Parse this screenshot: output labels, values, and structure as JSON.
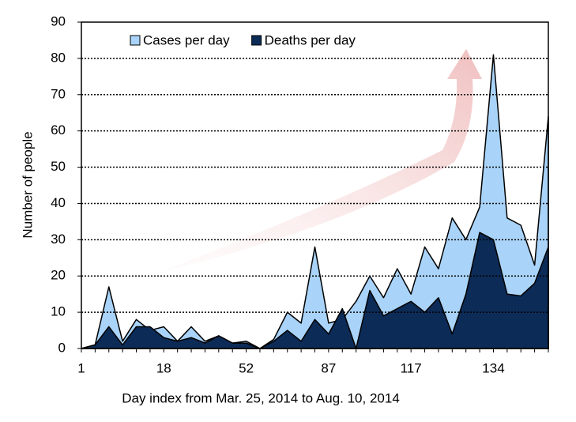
{
  "chart_data": {
    "type": "area",
    "x_label": "Day index from Mar. 25, 2014 to Aug. 10, 2014",
    "y_label": "Number of people",
    "categories": [
      1,
      null,
      null,
      null,
      null,
      null,
      18,
      null,
      null,
      null,
      null,
      null,
      52,
      null,
      null,
      null,
      null,
      null,
      87,
      null,
      null,
      null,
      null,
      null,
      117,
      null,
      null,
      null,
      null,
      null,
      134,
      null,
      null,
      null,
      null
    ],
    "series": [
      {
        "name": "Cases per day",
        "color": "#a9d3f8",
        "values": [
          0,
          1,
          17,
          2,
          8,
          5,
          6,
          2,
          6,
          2,
          3.5,
          1.5,
          2,
          0,
          2.5,
          10,
          7,
          28,
          7,
          8,
          13,
          20,
          14,
          22,
          15,
          28,
          22,
          36,
          30,
          39,
          81,
          36,
          34,
          23,
          64
        ]
      },
      {
        "name": "Deaths per day",
        "color": "#0c2b57",
        "values": [
          0,
          1,
          6,
          1,
          6,
          6,
          3,
          2,
          3,
          1.5,
          3.5,
          1.5,
          1.5,
          0,
          2,
          5,
          2,
          8,
          4,
          11,
          0,
          16,
          9,
          11,
          13,
          10,
          14,
          4,
          15,
          32,
          30,
          15,
          14.5,
          18,
          28
        ]
      }
    ],
    "ylim": [
      0,
      90
    ],
    "yticks": [
      0,
      10,
      20,
      30,
      40,
      50,
      60,
      70,
      80,
      90
    ],
    "grid": true,
    "legend": "top"
  }
}
